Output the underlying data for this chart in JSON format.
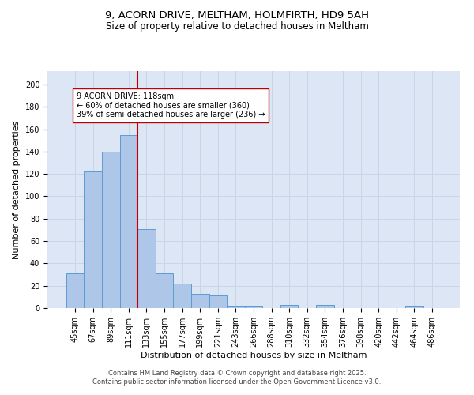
{
  "title1": "9, ACORN DRIVE, MELTHAM, HOLMFIRTH, HD9 5AH",
  "title2": "Size of property relative to detached houses in Meltham",
  "xlabel": "Distribution of detached houses by size in Meltham",
  "ylabel": "Number of detached properties",
  "bar_labels": [
    "45sqm",
    "67sqm",
    "89sqm",
    "111sqm",
    "133sqm",
    "155sqm",
    "177sqm",
    "199sqm",
    "221sqm",
    "243sqm",
    "266sqm",
    "288sqm",
    "310sqm",
    "332sqm",
    "354sqm",
    "376sqm",
    "398sqm",
    "420sqm",
    "442sqm",
    "464sqm",
    "486sqm"
  ],
  "bar_values": [
    31,
    122,
    140,
    155,
    71,
    31,
    22,
    13,
    11,
    2,
    2,
    0,
    3,
    0,
    3,
    0,
    0,
    0,
    0,
    2,
    0
  ],
  "bar_color": "#aec6e8",
  "bar_edge_color": "#5b9bd5",
  "vline_x": 3.5,
  "vline_color": "#c00000",
  "annotation_text": "9 ACORN DRIVE: 118sqm\n← 60% of detached houses are smaller (360)\n39% of semi-detached houses are larger (236) →",
  "annotation_box_color": "white",
  "annotation_box_edge_color": "#c00000",
  "yticks": [
    0,
    20,
    40,
    60,
    80,
    100,
    120,
    140,
    160,
    180,
    200
  ],
  "ylim": [
    0,
    212
  ],
  "grid_color": "#c8d4e8",
  "bg_color": "#dce6f5",
  "footnote": "Contains HM Land Registry data © Crown copyright and database right 2025.\nContains public sector information licensed under the Open Government Licence v3.0.",
  "title_fontsize": 9.5,
  "subtitle_fontsize": 8.5,
  "xlabel_fontsize": 8,
  "ylabel_fontsize": 8,
  "tick_fontsize": 7,
  "annot_fontsize": 7,
  "footnote_fontsize": 6
}
